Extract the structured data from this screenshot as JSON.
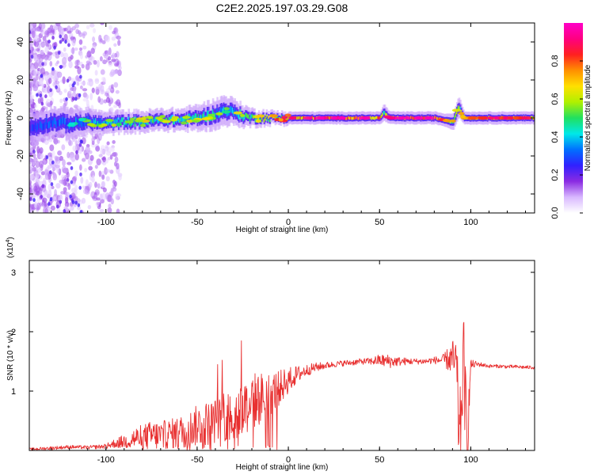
{
  "title": "C2E2.2025.197.03.29.G08",
  "chart_data": [
    {
      "type": "heatmap",
      "xlabel": "Height of straight line (km)",
      "ylabel": "Frequency (Hz)",
      "xlim": [
        -142,
        135
      ],
      "ylim": [
        -50,
        50
      ],
      "xticks": [
        -100,
        -50,
        0,
        50,
        100
      ],
      "yticks": [
        -40,
        -20,
        0,
        20,
        40
      ],
      "colorbar": {
        "label": "Normalized spectral amplitude",
        "range": [
          0,
          1
        ],
        "ticks": [
          "0.0",
          "0.2",
          "0.4",
          "0.6",
          "0.8"
        ],
        "colors": [
          "#ffffff",
          "#d8b8ff",
          "#8a2be2",
          "#3020ff",
          "#0070ff",
          "#00e8e8",
          "#20e060",
          "#b0f000",
          "#ffe000",
          "#ff9000",
          "#ff2020",
          "#ff0080",
          "#ff00c8"
        ]
      },
      "ridge": [
        {
          "x": -140,
          "y": -5,
          "amp": 0.25,
          "width": 7
        },
        {
          "x": -130,
          "y": -2,
          "amp": 0.3,
          "width": 7
        },
        {
          "x": -120,
          "y": -3,
          "amp": 0.3,
          "width": 7
        },
        {
          "x": -110,
          "y": -2,
          "amp": 0.35,
          "width": 6
        },
        {
          "x": -100,
          "y": -3,
          "amp": 0.4,
          "width": 5
        },
        {
          "x": -90,
          "y": -2,
          "amp": 0.4,
          "width": 5
        },
        {
          "x": -80,
          "y": -2,
          "amp": 0.45,
          "width": 5
        },
        {
          "x": -70,
          "y": -1,
          "amp": 0.45,
          "width": 5
        },
        {
          "x": -60,
          "y": -1,
          "amp": 0.45,
          "width": 5
        },
        {
          "x": -50,
          "y": 0,
          "amp": 0.45,
          "width": 6
        },
        {
          "x": -40,
          "y": 2,
          "amp": 0.4,
          "width": 7
        },
        {
          "x": -35,
          "y": 4,
          "amp": 0.35,
          "width": 7
        },
        {
          "x": -30,
          "y": 3,
          "amp": 0.4,
          "width": 6
        },
        {
          "x": -25,
          "y": 1,
          "amp": 0.45,
          "width": 5
        },
        {
          "x": -20,
          "y": 0,
          "amp": 0.5,
          "width": 4
        },
        {
          "x": -10,
          "y": 0,
          "amp": 0.55,
          "width": 3
        },
        {
          "x": 0,
          "y": 0,
          "amp": 0.65,
          "width": 3
        },
        {
          "x": 10,
          "y": 0,
          "amp": 0.75,
          "width": 3
        },
        {
          "x": 20,
          "y": 0,
          "amp": 0.8,
          "width": 3
        },
        {
          "x": 30,
          "y": 0,
          "amp": 0.8,
          "width": 3
        },
        {
          "x": 40,
          "y": 0,
          "amp": 0.8,
          "width": 3
        },
        {
          "x": 50,
          "y": 0,
          "amp": 0.7,
          "width": 3
        },
        {
          "x": 52,
          "y": 3,
          "amp": 0.5,
          "width": 4
        },
        {
          "x": 55,
          "y": 0,
          "amp": 0.7,
          "width": 3
        },
        {
          "x": 60,
          "y": 0,
          "amp": 0.8,
          "width": 3
        },
        {
          "x": 70,
          "y": 0,
          "amp": 0.8,
          "width": 3
        },
        {
          "x": 80,
          "y": 0,
          "amp": 0.8,
          "width": 3
        },
        {
          "x": 85,
          "y": -1,
          "amp": 0.6,
          "width": 3
        },
        {
          "x": 90,
          "y": -2,
          "amp": 0.5,
          "width": 4
        },
        {
          "x": 93,
          "y": 6,
          "amp": 0.5,
          "width": 5
        },
        {
          "x": 96,
          "y": 0,
          "amp": 0.6,
          "width": 3
        },
        {
          "x": 100,
          "y": 0,
          "amp": 0.65,
          "width": 3
        },
        {
          "x": 110,
          "y": 0,
          "amp": 0.7,
          "width": 3
        },
        {
          "x": 120,
          "y": 0,
          "amp": 0.7,
          "width": 3
        },
        {
          "x": 135,
          "y": 0,
          "amp": 0.65,
          "width": 3
        }
      ]
    },
    {
      "type": "line",
      "xlabel": "Height of straight line (km)",
      "ylabel": "SNR (10 * v/v)",
      "y_multiplier": "(x10",
      "y_multiplier_exp": "4",
      "xlim": [
        -142,
        135
      ],
      "ylim": [
        0,
        3.2
      ],
      "xticks": [
        -100,
        -50,
        0,
        50,
        100
      ],
      "yticks": [
        1,
        2,
        3
      ],
      "color": "#e83030",
      "x": [
        -142,
        -130,
        -120,
        -110,
        -100,
        -95,
        -90,
        -85,
        -80,
        -75,
        -70,
        -65,
        -60,
        -55,
        -50,
        -45,
        -40,
        -35,
        -30,
        -25,
        -20,
        -15,
        -10,
        -5,
        0,
        5,
        10,
        15,
        20,
        25,
        30,
        35,
        40,
        45,
        50,
        55,
        60,
        65,
        70,
        75,
        80,
        85,
        90,
        92,
        94,
        96,
        98,
        100,
        105,
        110,
        115,
        120,
        125,
        130,
        135
      ],
      "values": [
        0.02,
        0.04,
        0.06,
        0.05,
        0.07,
        0.12,
        0.15,
        0.2,
        0.22,
        0.25,
        0.25,
        0.28,
        0.3,
        0.35,
        0.42,
        0.45,
        0.5,
        0.55,
        0.62,
        0.72,
        0.82,
        0.88,
        0.95,
        1.05,
        1.18,
        1.28,
        1.35,
        1.4,
        1.43,
        1.45,
        1.47,
        1.48,
        1.5,
        1.5,
        1.52,
        1.5,
        1.5,
        1.5,
        1.5,
        1.5,
        1.52,
        1.52,
        1.55,
        1.4,
        0.1,
        1.6,
        0.1,
        1.45,
        1.45,
        1.42,
        1.42,
        1.41,
        1.41,
        1.4,
        1.4
      ],
      "noise": [
        0.02,
        0.03,
        0.03,
        0.03,
        0.04,
        0.08,
        0.12,
        0.18,
        0.22,
        0.25,
        0.25,
        0.25,
        0.28,
        0.3,
        0.35,
        0.38,
        0.38,
        0.42,
        0.45,
        0.48,
        0.5,
        0.45,
        0.38,
        0.3,
        0.22,
        0.15,
        0.1,
        0.08,
        0.06,
        0.05,
        0.05,
        0.05,
        0.05,
        0.06,
        0.1,
        0.12,
        0.08,
        0.06,
        0.05,
        0.05,
        0.06,
        0.1,
        0.3,
        0.6,
        0.8,
        0.8,
        0.6,
        0.08,
        0.04,
        0.03,
        0.03,
        0.03,
        0.03,
        0.03,
        0.03
      ]
    }
  ]
}
